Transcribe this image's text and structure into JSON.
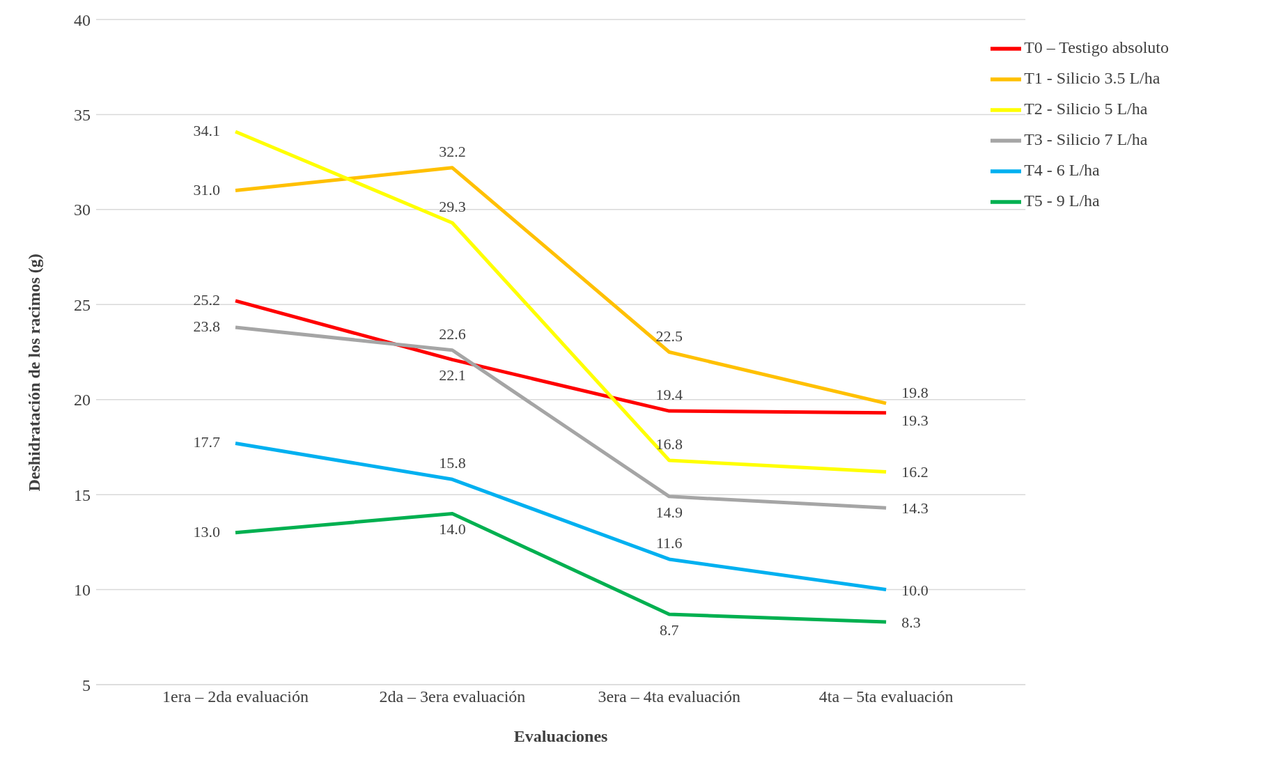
{
  "chart_data": {
    "type": "line",
    "xlabel": "Evaluaciones",
    "ylabel": "Deshidratación de los racimos (g)",
    "categories": [
      "1era – 2da evaluación",
      "2da – 3era evaluación",
      "3era – 4ta evaluación",
      "4ta – 5ta evaluación"
    ],
    "ylim": [
      5,
      40
    ],
    "yticks": [
      5,
      10,
      15,
      20,
      25,
      30,
      35,
      40
    ],
    "grid": "y",
    "legend": "top right",
    "marker": "none",
    "line_style": "solid",
    "series": [
      {
        "name": "T0 – Testigo absoluto",
        "color": "#ff0000",
        "values": [
          25.2,
          22.1,
          19.4,
          19.3
        ],
        "value_labels": [
          "25.2",
          "22.1",
          "19.4",
          "19.3"
        ]
      },
      {
        "name": "T1 - Silicio 3.5 L/ha",
        "color": "#ffc000",
        "values": [
          31.0,
          32.2,
          22.5,
          19.8
        ],
        "value_labels": [
          "31.0",
          "32.2",
          "22.5",
          "19.8"
        ]
      },
      {
        "name": "T2 - Silicio 5 L/ha",
        "color": "#ffff00",
        "values": [
          34.1,
          29.3,
          16.8,
          16.2
        ],
        "value_labels": [
          "34.1",
          "29.3",
          "16.8",
          "16.2"
        ]
      },
      {
        "name": "T3 - Silicio 7 L/ha",
        "color": "#a5a5a5",
        "values": [
          23.8,
          22.6,
          14.9,
          14.3
        ],
        "value_labels": [
          "23.8",
          "22.6",
          "14.9",
          "14.3"
        ]
      },
      {
        "name": "T4 - 6 L/ha",
        "color": "#00b0f0",
        "values": [
          17.7,
          15.8,
          11.6,
          10.0
        ],
        "value_labels": [
          "17.7",
          "15.8",
          "11.6",
          "10.0"
        ]
      },
      {
        "name": "T5 - 9 L/ha",
        "color": "#00b050",
        "values": [
          13.0,
          14.0,
          8.7,
          8.3
        ],
        "value_labels": [
          "13.0",
          "14.0",
          "8.7",
          "8.3"
        ]
      }
    ]
  }
}
